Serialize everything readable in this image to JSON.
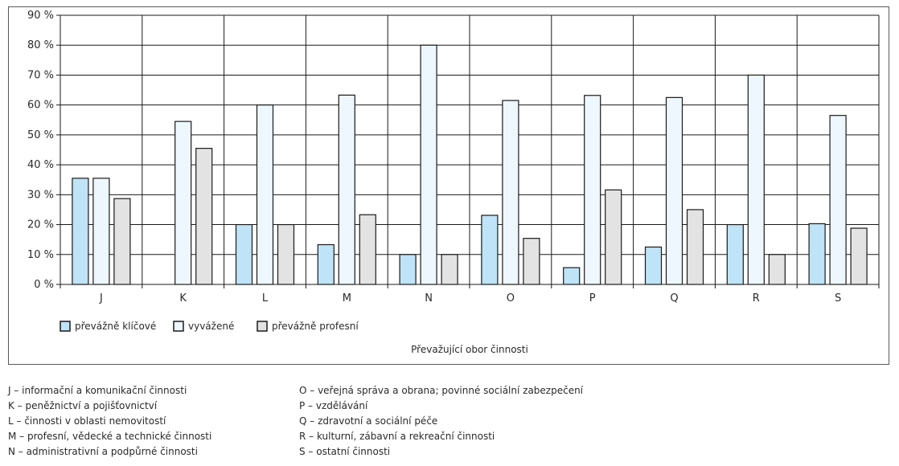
{
  "chart_data": {
    "type": "bar",
    "categories": [
      "J",
      "K",
      "L",
      "M",
      "N",
      "O",
      "P",
      "Q",
      "R",
      "S"
    ],
    "series": [
      {
        "name": "převážně klíčové",
        "values": [
          35.5,
          0,
          20,
          13.3,
          10,
          23.1,
          5.6,
          12.5,
          20,
          20.3
        ]
      },
      {
        "name": "vyvážené",
        "values": [
          35.5,
          54.5,
          60,
          63.3,
          80,
          61.5,
          63.2,
          62.5,
          70,
          56.5
        ]
      },
      {
        "name": "převážně profesní",
        "values": [
          28.7,
          45.5,
          20,
          23.3,
          10,
          15.4,
          31.6,
          25,
          10,
          18.8
        ]
      }
    ],
    "yticks": [
      "0 %",
      "10 %",
      "20 %",
      "30 %",
      "40 %",
      "50 %",
      "60 %",
      "70 %",
      "80 %",
      "90 %"
    ],
    "ylim": [
      0,
      90
    ],
    "xlabel": "Převažující obor činnosti",
    "grid": true,
    "legend_position": "bottom-left",
    "colors": {
      "klicove": "#bfe3f7",
      "vyvazene": "#eef7fd",
      "profesni": "#e3e3e3",
      "outline": "#1a1a1a",
      "grid": "#1a1a1a"
    }
  },
  "notes": {
    "left": [
      "J – informační a komunikační činnosti",
      "K – peněžnictví a pojišťovnictví",
      "L – činnosti v oblasti nemovitostí",
      "M – profesní, vědecké a technické činnosti",
      "N – administrativní a podpůrné činnosti"
    ],
    "right": [
      "O – veřejná správa a obrana; povinné sociální zabezpečení",
      "P – vzdělávání",
      "Q – zdravotní a sociální péče",
      "R – kulturní, zábavní a rekreační činnosti",
      "S – ostatní činnosti"
    ]
  }
}
